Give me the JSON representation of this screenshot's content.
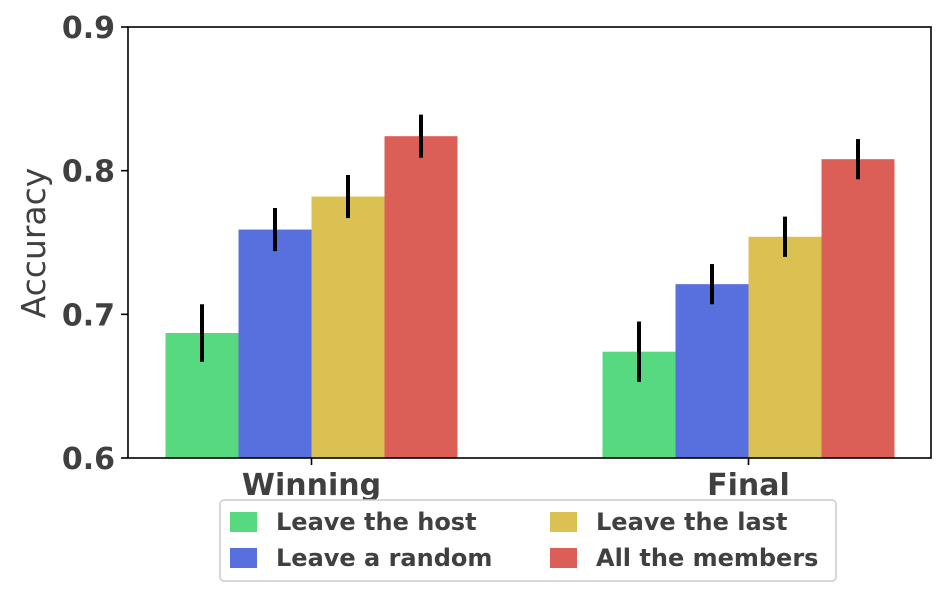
{
  "chart_data": {
    "type": "bar",
    "ylabel": "Accuracy",
    "xlabel": "",
    "ylim": [
      0.6,
      0.9
    ],
    "yticks": [
      0.6,
      0.7,
      0.8,
      0.9
    ],
    "ytick_labels": [
      "0.6",
      "0.7",
      "0.8",
      "0.9"
    ],
    "categories": [
      "Winning",
      "Final"
    ],
    "legend_position": "bottom-center",
    "grid": false,
    "series": [
      {
        "name": "Leave the host",
        "color": "#57d97f",
        "values": [
          0.687,
          0.674
        ],
        "errors": [
          0.02,
          0.021
        ]
      },
      {
        "name": "Leave a random",
        "color": "#5870dd",
        "values": [
          0.759,
          0.721
        ],
        "errors": [
          0.015,
          0.014
        ]
      },
      {
        "name": "Leave the last",
        "color": "#dbc052",
        "values": [
          0.782,
          0.754
        ],
        "errors": [
          0.015,
          0.014
        ]
      },
      {
        "name": "All the members",
        "color": "#db5f57",
        "values": [
          0.824,
          0.808
        ],
        "errors": [
          0.015,
          0.014
        ]
      }
    ]
  }
}
